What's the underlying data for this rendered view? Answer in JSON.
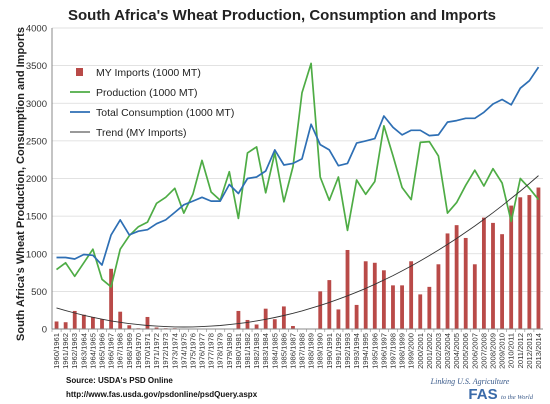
{
  "chart_data": {
    "type": "bar",
    "title": "South Africa's Wheat Production, Consumption and Imports",
    "ylabel": "South Africa's Wheat Production, Consumption and Imports",
    "xlabel": "",
    "ylim": [
      0,
      4000
    ],
    "yticks": [
      0,
      500,
      1000,
      1500,
      2000,
      2500,
      3000,
      3500,
      4000
    ],
    "grid": "horizontal",
    "legend_position": "top-left",
    "categories": [
      "1960/1961",
      "1961/1962",
      "1962/1963",
      "1963/1964",
      "1964/1965",
      "1965/1966",
      "1966/1967",
      "1967/1968",
      "1968/1969",
      "1969/1970",
      "1970/1971",
      "1971/1972",
      "1972/1973",
      "1973/1974",
      "1974/1975",
      "1975/1976",
      "1976/1977",
      "1977/1978",
      "1978/1979",
      "1979/1980",
      "1980/1981",
      "1981/1982",
      "1982/1983",
      "1983/1984",
      "1984/1985",
      "1985/1986",
      "1986/1987",
      "1987/1988",
      "1988/1989",
      "1989/1990",
      "1990/1991",
      "1991/1992",
      "1992/1993",
      "1993/1994",
      "1994/1995",
      "1995/1996",
      "1996/1997",
      "1997/1998",
      "1998/1999",
      "1999/2000",
      "2000/2001",
      "2001/2002",
      "2002/2003",
      "2003/2004",
      "2004/2005",
      "2005/2006",
      "2006/2007",
      "2007/2008",
      "2008/2009",
      "2009/2010",
      "2010/2011",
      "2011/2012",
      "2012/2013",
      "2013/2014"
    ],
    "series": [
      {
        "name": "MY Imports (1000 MT)",
        "kind": "bar",
        "color": "#b94a48",
        "values": [
          100,
          90,
          240,
          190,
          160,
          130,
          800,
          230,
          50,
          10,
          160,
          20,
          10,
          10,
          0,
          0,
          0,
          0,
          0,
          0,
          240,
          120,
          60,
          270,
          130,
          300,
          40,
          0,
          0,
          500,
          650,
          260,
          1050,
          320,
          900,
          880,
          780,
          580,
          580,
          900,
          460,
          560,
          860,
          1270,
          1380,
          1210,
          860,
          1480,
          1410,
          1260,
          1640,
          1750,
          1780,
          1880
        ]
      },
      {
        "name": "Production (1000 MT)",
        "kind": "line",
        "color": "#4eac45",
        "values": [
          790,
          880,
          700,
          880,
          1060,
          660,
          560,
          1060,
          1240,
          1360,
          1420,
          1670,
          1750,
          1870,
          1540,
          1790,
          2240,
          1820,
          1710,
          2090,
          1470,
          2340,
          2420,
          1810,
          2340,
          1690,
          2160,
          3140,
          3530,
          2020,
          1710,
          2020,
          1310,
          1980,
          1790,
          1960,
          2700,
          2300,
          1880,
          1720,
          2480,
          2490,
          2300,
          1540,
          1680,
          1910,
          2110,
          1900,
          2130,
          1940,
          1430,
          2000,
          1870,
          1720
        ]
      },
      {
        "name": "Total Consumption (1000 MT)",
        "kind": "line",
        "color": "#2e6fb4",
        "values": [
          950,
          950,
          930,
          990,
          980,
          850,
          1250,
          1450,
          1250,
          1300,
          1320,
          1400,
          1450,
          1550,
          1650,
          1700,
          1750,
          1700,
          1700,
          1920,
          1800,
          2000,
          2020,
          2100,
          2380,
          2180,
          2200,
          2260,
          2720,
          2450,
          2380,
          2170,
          2200,
          2470,
          2500,
          2530,
          2830,
          2680,
          2580,
          2640,
          2640,
          2570,
          2580,
          2750,
          2770,
          2800,
          2800,
          2880,
          2990,
          3050,
          2980,
          3200,
          3300,
          3480
        ]
      },
      {
        "name": "Trend (MY Imports)",
        "kind": "trend",
        "color": "#333333",
        "values": [
          280,
          245,
          212,
          182,
          155,
          130,
          108,
          89,
          72,
          58,
          47,
          38,
          32,
          28,
          27,
          28,
          32,
          38,
          47,
          58,
          72,
          88,
          107,
          129,
          153,
          180,
          209,
          241,
          276,
          313,
          353,
          396,
          441,
          489,
          540,
          594,
          651,
          710,
          772,
          837,
          905,
          975,
          1048,
          1124,
          1203,
          1285,
          1369,
          1456,
          1546,
          1639,
          1735,
          1833,
          1934,
          2038
        ]
      }
    ]
  },
  "source": {
    "line1": "Source: USDA's PSD Online",
    "line2": "http://www.fas.usda.gov/psdonline/psdQuery.aspx"
  },
  "logo": {
    "tagline": "Linking U.S. Agriculture",
    "mark": "FAS",
    "tagline2": "to the World"
  }
}
